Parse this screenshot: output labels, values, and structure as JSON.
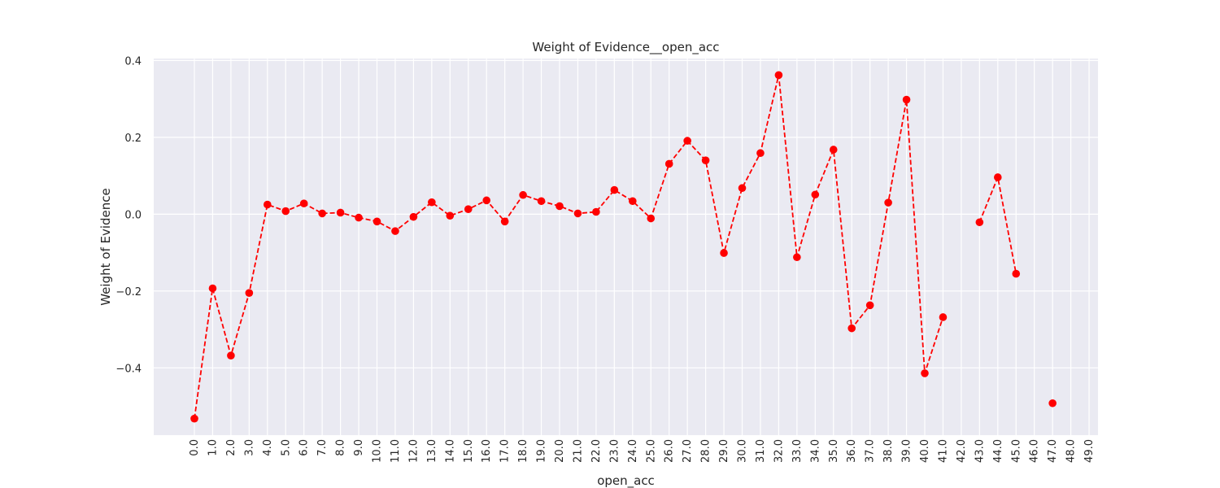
{
  "chart_data": {
    "type": "line",
    "title": "Weight of Evidence__open_acc",
    "xlabel": "open_acc",
    "ylabel": "Weight of Evidence",
    "categories": [
      "0.0",
      "1.0",
      "2.0",
      "3.0",
      "4.0",
      "5.0",
      "6.0",
      "7.0",
      "8.0",
      "9.0",
      "10.0",
      "11.0",
      "12.0",
      "13.0",
      "14.0",
      "15.0",
      "16.0",
      "17.0",
      "18.0",
      "19.0",
      "20.0",
      "21.0",
      "22.0",
      "23.0",
      "24.0",
      "25.0",
      "26.0",
      "27.0",
      "28.0",
      "29.0",
      "30.0",
      "31.0",
      "32.0",
      "33.0",
      "34.0",
      "35.0",
      "36.0",
      "37.0",
      "38.0",
      "39.0",
      "40.0",
      "41.0",
      "42.0",
      "43.0",
      "44.0",
      "45.0",
      "46.0",
      "47.0",
      "48.0",
      "49.0"
    ],
    "series": [
      {
        "values": [
          -0.532,
          -0.193,
          -0.368,
          -0.205,
          0.025,
          0.008,
          0.028,
          0.002,
          0.004,
          -0.009,
          -0.019,
          -0.044,
          -0.007,
          0.031,
          -0.004,
          0.013,
          0.036,
          -0.019,
          0.05,
          0.034,
          0.021,
          0.002,
          0.006,
          0.063,
          0.034,
          -0.011,
          0.131,
          0.191,
          0.14,
          -0.101,
          0.068,
          0.159,
          0.362,
          -0.112,
          0.051,
          0.168,
          -0.297,
          -0.237,
          0.03,
          0.298,
          -0.414,
          -0.268,
          null,
          -0.021,
          0.096,
          -0.155,
          null,
          -0.492,
          null,
          null
        ],
        "color": "#ff0000",
        "line_style": "dashed",
        "marker": "circle"
      }
    ],
    "yticks": [
      -0.4,
      -0.2,
      0.0,
      0.2,
      0.4
    ],
    "ytick_labels": [
      "−0.4",
      "−0.2",
      "0.0",
      "0.2",
      "0.4"
    ],
    "ylim": [
      -0.575,
      0.405
    ],
    "grid": true,
    "background_color": "#eaeaf2",
    "grid_color": "#ffffff"
  }
}
